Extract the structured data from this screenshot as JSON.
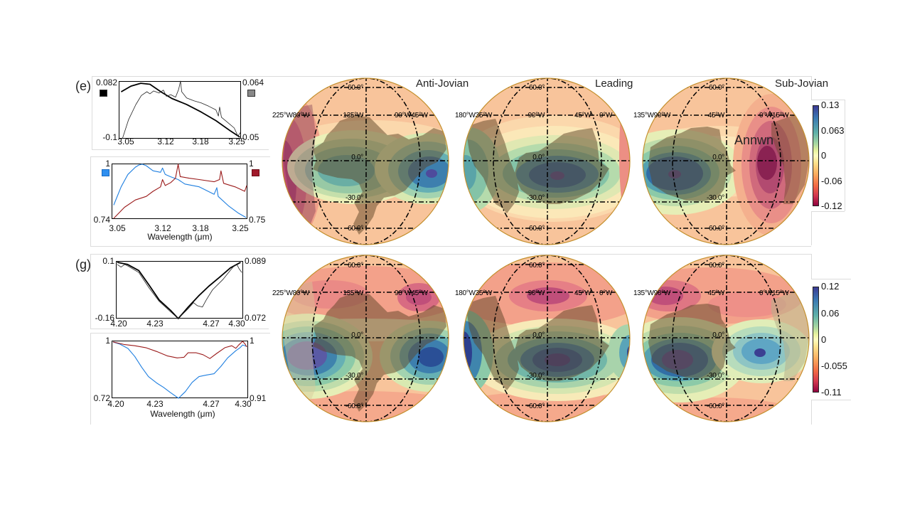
{
  "figure": {
    "panel_e_label": "(e)",
    "panel_g_label": "(g)",
    "column_titles": [
      "Anti-Jovian",
      "Leading",
      "Sub-Jovian"
    ],
    "annotation": "Annwn",
    "xlabel": "Wavelength (μm)"
  },
  "colorbars": [
    {
      "row": "e",
      "ticks": [
        "0.13",
        "0.063",
        "0",
        "-0.06",
        "-0.12"
      ],
      "range": [
        -0.12,
        0.13
      ]
    },
    {
      "row": "g",
      "ticks": [
        "0.12",
        "0.06",
        "0",
        "-0.055",
        "-0.11"
      ],
      "range": [
        -0.11,
        0.12
      ]
    }
  ],
  "chart_data": [
    {
      "id": "e-spectra-top",
      "type": "line",
      "panel": "(e)",
      "xlim": [
        3.05,
        3.25
      ],
      "xticks": [
        "3.05",
        "3.12",
        "3.18",
        "3.25"
      ],
      "xlabel": "",
      "yleft": {
        "min": "-0.1",
        "max": "0.082"
      },
      "yright": {
        "min": "0.05",
        "max": "0.064"
      },
      "legend": [
        {
          "side": "left",
          "color": "#000000"
        },
        {
          "side": "right",
          "color": "#888888"
        }
      ],
      "series": [
        {
          "name": "black (left axis)",
          "color": "#000000",
          "width": 1.8,
          "ylim": [
            -0.1,
            0.082
          ],
          "points": [
            [
              3.054,
              0.048
            ],
            [
              3.07,
              0.066
            ],
            [
              3.086,
              0.075
            ],
            [
              3.101,
              0.072
            ],
            [
              3.119,
              0.048
            ],
            [
              3.137,
              0.027
            ],
            [
              3.161,
              0.008
            ],
            [
              3.185,
              -0.016
            ],
            [
              3.209,
              -0.043
            ],
            [
              3.233,
              -0.076
            ],
            [
              3.248,
              -0.095
            ]
          ]
        },
        {
          "name": "gray (right axis)",
          "color": "#222222",
          "width": 0.8,
          "ylim": [
            0.05,
            0.064
          ],
          "points": [
            [
              3.056,
              0.05
            ],
            [
              3.066,
              0.0546
            ],
            [
              3.078,
              0.0583
            ],
            [
              3.087,
              0.0605
            ],
            [
              3.096,
              0.0614
            ],
            [
              3.101,
              0.0609
            ],
            [
              3.107,
              0.0616
            ],
            [
              3.116,
              0.0611
            ],
            [
              3.123,
              0.0618
            ],
            [
              3.128,
              0.0603
            ],
            [
              3.135,
              0.0607
            ],
            [
              3.143,
              0.0601
            ],
            [
              3.148,
              0.062
            ],
            [
              3.151,
              0.064
            ],
            [
              3.153,
              0.0614
            ],
            [
              3.161,
              0.0599
            ],
            [
              3.173,
              0.0592
            ],
            [
              3.185,
              0.0587
            ],
            [
              3.197,
              0.0579
            ],
            [
              3.209,
              0.057
            ],
            [
              3.213,
              0.0555
            ],
            [
              3.215,
              0.0577
            ],
            [
              3.218,
              0.0552
            ],
            [
              3.227,
              0.0541
            ],
            [
              3.239,
              0.0526
            ],
            [
              3.245,
              0.0506
            ],
            [
              3.249,
              0.0515
            ]
          ]
        }
      ]
    },
    {
      "id": "e-spectra-bottom",
      "type": "line",
      "panel": "(e)",
      "xlim": [
        3.05,
        3.25
      ],
      "xticks": [
        "3.05",
        "3.12",
        "3.18",
        "3.25"
      ],
      "xlabel": "Wavelength (μm)",
      "yleft": {
        "min": "0.74",
        "max": "1"
      },
      "yright": {
        "min": "0.75",
        "max": "1"
      },
      "legend": [
        {
          "side": "left",
          "color": "#2f8ff0"
        },
        {
          "side": "right",
          "color": "#a0192a"
        }
      ],
      "series": [
        {
          "name": "blue (left axis)",
          "color": "#1f7fe0",
          "width": 1.1,
          "ylim": [
            0.74,
            1.0
          ],
          "points": [
            [
              3.053,
              0.805
            ],
            [
              3.064,
              0.891
            ],
            [
              3.074,
              0.949
            ],
            [
              3.085,
              0.983
            ],
            [
              3.09,
              0.993
            ],
            [
              3.095,
              0.997
            ],
            [
              3.101,
              0.99
            ],
            [
              3.111,
              0.966
            ],
            [
              3.122,
              0.959
            ],
            [
              3.125,
              0.979
            ],
            [
              3.129,
              0.949
            ],
            [
              3.137,
              0.938
            ],
            [
              3.148,
              0.925
            ],
            [
              3.158,
              0.904
            ],
            [
              3.179,
              0.891
            ],
            [
              3.201,
              0.856
            ],
            [
              3.205,
              0.887
            ],
            [
              3.207,
              0.846
            ],
            [
              3.222,
              0.802
            ],
            [
              3.237,
              0.767
            ],
            [
              3.248,
              0.747
            ]
          ]
        },
        {
          "name": "red (right axis)",
          "color": "#9b1b1b",
          "width": 1.1,
          "ylim": [
            0.75,
            1.0
          ],
          "points": [
            [
              3.053,
              0.753
            ],
            [
              3.069,
              0.803
            ],
            [
              3.085,
              0.836
            ],
            [
              3.101,
              0.852
            ],
            [
              3.111,
              0.875
            ],
            [
              3.122,
              0.895
            ],
            [
              3.125,
              0.928
            ],
            [
              3.129,
              0.901
            ],
            [
              3.137,
              0.914
            ],
            [
              3.144,
              0.934
            ],
            [
              3.148,
              0.997
            ],
            [
              3.151,
              0.941
            ],
            [
              3.164,
              0.934
            ],
            [
              3.179,
              0.928
            ],
            [
              3.201,
              0.918
            ],
            [
              3.209,
              0.928
            ],
            [
              3.211,
              0.967
            ],
            [
              3.215,
              0.911
            ],
            [
              3.232,
              0.895
            ],
            [
              3.246,
              0.875
            ],
            [
              3.249,
              0.901
            ]
          ]
        }
      ]
    },
    {
      "id": "g-spectra-top",
      "type": "line",
      "panel": "(g)",
      "xlim": [
        4.2,
        4.3
      ],
      "xticks": [
        "4.20",
        "4.23",
        "4.27",
        "4.30"
      ],
      "xlabel": "",
      "yleft": {
        "min": "-0.16",
        "max": "0.1"
      },
      "yright": {
        "min": "0.072",
        "max": "0.089"
      },
      "series": [
        {
          "name": "thick (left axis)",
          "color": "#000000",
          "width": 1.8,
          "ylim": [
            -0.16,
            0.1
          ],
          "points": [
            [
              4.201,
              0.094
            ],
            [
              4.209,
              0.085
            ],
            [
              4.218,
              0.057
            ],
            [
              4.226,
              -0.008
            ],
            [
              4.234,
              -0.076
            ],
            [
              4.243,
              -0.123
            ],
            [
              4.249,
              -0.16
            ],
            [
              4.257,
              -0.107
            ],
            [
              4.265,
              -0.058
            ],
            [
              4.273,
              -0.014
            ],
            [
              4.282,
              0.029
            ],
            [
              4.29,
              0.069
            ],
            [
              4.298,
              0.094
            ]
          ]
        },
        {
          "name": "thin (right axis)",
          "color": "#222222",
          "width": 0.8,
          "ylim": [
            0.072,
            0.089
          ],
          "points": [
            [
              4.201,
              0.088
            ],
            [
              4.204,
              0.0872
            ],
            [
              4.207,
              0.088
            ],
            [
              4.211,
              0.0872
            ],
            [
              4.218,
              0.0856
            ],
            [
              4.226,
              0.0811
            ],
            [
              4.234,
              0.0771
            ],
            [
              4.243,
              0.074
            ],
            [
              4.249,
              0.072
            ],
            [
              4.257,
              0.075
            ],
            [
              4.261,
              0.0767
            ],
            [
              4.264,
              0.0758
            ],
            [
              4.268,
              0.0754
            ],
            [
              4.271,
              0.0775
            ],
            [
              4.276,
              0.0805
            ],
            [
              4.284,
              0.0835
            ],
            [
              4.292,
              0.0872
            ],
            [
              4.295,
              0.088
            ],
            [
              4.297,
              0.0866
            ],
            [
              4.299,
              0.0856
            ]
          ]
        }
      ]
    },
    {
      "id": "g-spectra-bottom",
      "type": "line",
      "panel": "(g)",
      "xlim": [
        4.2,
        4.3
      ],
      "xticks": [
        "4.20",
        "4.23",
        "4.27",
        "4.30"
      ],
      "xlabel": "Wavelength (μm)",
      "yleft": {
        "min": "0.72",
        "max": "1"
      },
      "yright": {
        "min": "0.91",
        "max": "1"
      },
      "series": [
        {
          "name": "blue (left axis)",
          "color": "#1f7fe0",
          "width": 1.1,
          "ylim": [
            0.72,
            1.0
          ],
          "points": [
            [
              4.201,
              0.993
            ],
            [
              4.206,
              0.983
            ],
            [
              4.212,
              0.962
            ],
            [
              4.217,
              0.923
            ],
            [
              4.222,
              0.871
            ],
            [
              4.227,
              0.825
            ],
            [
              4.233,
              0.794
            ],
            [
              4.238,
              0.773
            ],
            [
              4.243,
              0.748
            ],
            [
              4.249,
              0.72
            ],
            [
              4.254,
              0.752
            ],
            [
              4.259,
              0.797
            ],
            [
              4.264,
              0.825
            ],
            [
              4.269,
              0.832
            ],
            [
              4.275,
              0.839
            ],
            [
              4.28,
              0.874
            ],
            [
              4.285,
              0.916
            ],
            [
              4.291,
              0.951
            ],
            [
              4.294,
              0.965
            ],
            [
              4.296,
              0.979
            ],
            [
              4.299,
              0.972
            ]
          ]
        },
        {
          "name": "red (right axis)",
          "color": "#9b1b1b",
          "width": 1.1,
          "ylim": [
            0.91,
            1.0
          ],
          "points": [
            [
              4.201,
              0.998
            ],
            [
              4.209,
              0.994
            ],
            [
              4.217,
              0.992
            ],
            [
              4.225,
              0.989
            ],
            [
              4.233,
              0.983
            ],
            [
              4.241,
              0.976
            ],
            [
              4.248,
              0.973
            ],
            [
              4.253,
              0.974
            ],
            [
              4.256,
              0.981
            ],
            [
              4.262,
              0.981
            ],
            [
              4.267,
              0.978
            ],
            [
              4.272,
              0.972
            ],
            [
              4.277,
              0.98
            ],
            [
              4.283,
              0.989
            ],
            [
              4.288,
              0.992
            ],
            [
              4.291,
              0.988
            ],
            [
              4.293,
              0.993
            ],
            [
              4.296,
              0.999
            ],
            [
              4.298,
              0.994
            ],
            [
              4.299,
              0.99
            ]
          ]
        }
      ]
    },
    {
      "id": "map-e-antijovian",
      "type": "heatmap",
      "row": "e",
      "title": "Anti-Jovian",
      "lat_labels": {
        "n60": "60.0°",
        "eq": "0.0°",
        "s30": "-30.0°",
        "s60": "-60.0°"
      },
      "lon_labels": [
        "225°W80°W",
        "135°W",
        "90°W45°W"
      ],
      "colorbar": 0
    },
    {
      "id": "map-e-leading",
      "type": "heatmap",
      "row": "e",
      "title": "Leading",
      "lat_labels": {
        "n60": "60.0°",
        "eq": "0.0°",
        "s30": "-30.0°",
        "s60": "-60.0°"
      },
      "lon_labels": [
        "180°W35°W",
        "90°W",
        "45°W",
        "0°W"
      ],
      "colorbar": 0
    },
    {
      "id": "map-e-subjovian",
      "type": "heatmap",
      "row": "e",
      "title": "Sub-Jovian",
      "annotation": "Annwn",
      "lat_labels": {
        "n60": "60.0°",
        "eq": "0.0°",
        "s30": "-30.0°",
        "s60": "-60.0°"
      },
      "lon_labels": [
        "135°W90°W",
        "45°W",
        "0°W15°W"
      ],
      "colorbar": 0
    },
    {
      "id": "map-g-antijovian",
      "type": "heatmap",
      "row": "g",
      "lat_labels": {
        "n60": "60.0°",
        "eq": "0.0°",
        "s30": "-30.0°",
        "s60": "-60.0°"
      },
      "lon_labels": [
        "225°W80°W",
        "135°W",
        "90°W45°W"
      ],
      "colorbar": 1
    },
    {
      "id": "map-g-leading",
      "type": "heatmap",
      "row": "g",
      "lat_labels": {
        "n60": "60.0°",
        "eq": "0.0°",
        "s30": "-30.0°",
        "s60": "-60.0°"
      },
      "lon_labels": [
        "180°W35°W",
        "90°W",
        "45°W",
        "0°W"
      ],
      "colorbar": 1
    },
    {
      "id": "map-g-subjovian",
      "type": "heatmap",
      "row": "g",
      "lat_labels": {
        "n60": "60.0°",
        "eq": "0.0°",
        "s30": "-30.0°",
        "s60": "-60.0°"
      },
      "lon_labels": [
        "135°W90°W",
        "45°W",
        "0°W15°W"
      ],
      "colorbar": 1
    }
  ]
}
